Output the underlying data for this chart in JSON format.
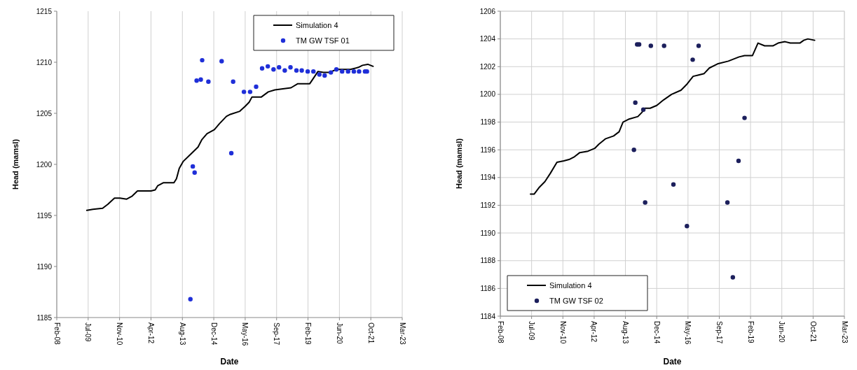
{
  "chart_data": [
    {
      "type": "line",
      "xlabel": "Date",
      "ylabel": "Head (mamsl)",
      "ylim": [
        1185,
        1215
      ],
      "yticks": [
        1185,
        1190,
        1195,
        1200,
        1205,
        1210,
        1215
      ],
      "xlim": [
        "2008-02-22",
        "2023-03-15"
      ],
      "xticks": [
        {
          "value": "2008-02-22",
          "label": "Feb-08"
        },
        {
          "value": "2009-07-06",
          "label": "Jul-09"
        },
        {
          "value": "2010-11-18",
          "label": "Nov-10"
        },
        {
          "value": "2012-04-01",
          "label": "Apr-12"
        },
        {
          "value": "2013-08-14",
          "label": "Aug-13"
        },
        {
          "value": "2014-12-27",
          "label": "Dec-14"
        },
        {
          "value": "2016-05-10",
          "label": "May-16"
        },
        {
          "value": "2017-09-22",
          "label": "Sep-17"
        },
        {
          "value": "2019-02-04",
          "label": "Feb-19"
        },
        {
          "value": "2020-06-18",
          "label": "Jun-20"
        },
        {
          "value": "2021-10-31",
          "label": "Oct-21"
        },
        {
          "value": "2023-03-15",
          "label": "Mar-23"
        }
      ],
      "grid": "x",
      "legend": "top right",
      "series": [
        {
          "name": "Simulation 4",
          "color": "#000000",
          "line_style": "solid",
          "x": [
            "2009-06-14",
            "2009-09-20",
            "2010-02-21",
            "2010-05-16",
            "2010-08-29",
            "2010-11-25",
            "2011-03-11",
            "2011-06-07",
            "2011-08-30",
            "2012-04-02",
            "2012-06-07",
            "2012-07-16",
            "2012-10-13",
            "2013-04-02",
            "2013-05-12",
            "2013-06-25",
            "2013-08-29",
            "2013-11-22",
            "2014-04-20",
            "2014-06-18",
            "2014-09-10",
            "2015-01-05",
            "2015-03-29",
            "2015-07-16",
            "2015-09-17",
            "2016-02-14",
            "2016-05-12",
            "2016-07-13",
            "2016-08-26",
            "2017-01-23",
            "2017-05-12",
            "2017-08-26",
            "2018-01-01",
            "2018-05-09",
            "2018-08-26",
            "2019-03-04",
            "2019-05-09",
            "2019-07-13",
            "2019-10-05",
            "2020-01-01",
            "2020-05-09",
            "2020-12-10",
            "2021-04-16",
            "2021-06-21",
            "2021-09-13",
            "2021-12-06"
          ],
          "values": [
            1195.5,
            1195.6,
            1195.7,
            1196.1,
            1196.7,
            1196.7,
            1196.6,
            1196.9,
            1197.4,
            1197.4,
            1197.5,
            1197.9,
            1198.2,
            1198.2,
            1198.6,
            1199.6,
            1200.3,
            1200.8,
            1201.7,
            1202.4,
            1203.0,
            1203.4,
            1204.0,
            1204.7,
            1204.9,
            1205.2,
            1205.7,
            1206.1,
            1206.6,
            1206.6,
            1207.1,
            1207.3,
            1207.4,
            1207.5,
            1207.9,
            1207.9,
            1208.5,
            1209.1,
            1209.0,
            1209.0,
            1209.3,
            1209.3,
            1209.5,
            1209.7,
            1209.8,
            1209.6
          ]
        },
        {
          "name": "TM GW TSF 01",
          "type": "scatter",
          "color": "#1f2fd8",
          "marker": "circle",
          "x": [
            "2013-12-20",
            "2014-01-27",
            "2014-02-25",
            "2014-03-29",
            "2014-06-03",
            "2014-06-25",
            "2014-10-02",
            "2015-05-01",
            "2015-10-02",
            "2015-10-31",
            "2016-04-20",
            "2016-07-27",
            "2016-10-31",
            "2017-02-03",
            "2017-05-05",
            "2017-08-04",
            "2017-10-31",
            "2018-01-30",
            "2018-05-01",
            "2018-08-04",
            "2018-10-27",
            "2019-01-30",
            "2019-05-01",
            "2019-08-04",
            "2019-10-27",
            "2020-02-03",
            "2020-05-01",
            "2020-07-31",
            "2020-11-03",
            "2021-02-03",
            "2021-04-27",
            "2021-07-31",
            "2021-08-30"
          ],
          "values": [
            1186.8,
            1199.8,
            1199.2,
            1208.2,
            1208.3,
            1210.2,
            1208.1,
            1210.1,
            1201.1,
            1208.1,
            1207.1,
            1207.1,
            1207.6,
            1209.4,
            1209.6,
            1209.3,
            1209.5,
            1209.2,
            1209.5,
            1209.2,
            1209.2,
            1209.1,
            1209.1,
            1208.8,
            1208.7,
            1209.0,
            1209.3,
            1209.1,
            1209.1,
            1209.1,
            1209.1,
            1209.1,
            1209.1
          ]
        }
      ]
    },
    {
      "type": "line",
      "xlabel": "Date",
      "ylabel": "Head (mamsl)",
      "ylim": [
        1184,
        1206
      ],
      "yticks": [
        1184,
        1186,
        1188,
        1190,
        1192,
        1194,
        1196,
        1198,
        1200,
        1202,
        1204,
        1206
      ],
      "xlim": [
        "2008-02-22",
        "2023-03-15"
      ],
      "xticks": [
        {
          "value": "2008-02-22",
          "label": "Feb-08"
        },
        {
          "value": "2009-07-06",
          "label": "Jul-09"
        },
        {
          "value": "2010-11-18",
          "label": "Nov-10"
        },
        {
          "value": "2012-04-01",
          "label": "Apr-12"
        },
        {
          "value": "2013-08-14",
          "label": "Aug-13"
        },
        {
          "value": "2014-12-27",
          "label": "Dec-14"
        },
        {
          "value": "2016-05-10",
          "label": "May-16"
        },
        {
          "value": "2017-09-22",
          "label": "Sep-17"
        },
        {
          "value": "2019-02-04",
          "label": "Feb-19"
        },
        {
          "value": "2020-06-18",
          "label": "Jun-20"
        },
        {
          "value": "2021-10-31",
          "label": "Oct-21"
        },
        {
          "value": "2023-03-15",
          "label": "Mar-23"
        }
      ],
      "grid": true,
      "legend": "bottom left",
      "series": [
        {
          "name": "Simulation 4",
          "color": "#000000",
          "line_style": "solid",
          "x": [
            "2009-06-18",
            "2009-08-15",
            "2009-11-07",
            "2010-02-03",
            "2010-05-01",
            "2010-08-15",
            "2010-12-03",
            "2011-02-25",
            "2011-05-23",
            "2011-08-15",
            "2011-12-24",
            "2012-04-09",
            "2012-06-14",
            "2012-10-02",
            "2013-02-06",
            "2013-05-05",
            "2013-07-06",
            "2013-10-02",
            "2014-03-01",
            "2014-05-05",
            "2014-06-18",
            "2014-09-13",
            "2014-12-28",
            "2015-04-16",
            "2015-08-22",
            "2016-01-19",
            "2016-04-16",
            "2016-07-31",
            "2016-10-27",
            "2017-01-23",
            "2017-04-16",
            "2017-08-26",
            "2018-02-14",
            "2018-08-04",
            "2018-10-31",
            "2019-03-07",
            "2019-06-03",
            "2019-09-17",
            "2020-01-27",
            "2020-04-20",
            "2020-08-08",
            "2020-10-31",
            "2021-04-02",
            "2021-06-03",
            "2021-08-08",
            "2021-11-25"
          ],
          "values": [
            1192.8,
            1192.8,
            1193.3,
            1193.7,
            1194.3,
            1195.1,
            1195.2,
            1195.3,
            1195.5,
            1195.8,
            1195.9,
            1196.1,
            1196.4,
            1196.8,
            1197.0,
            1197.3,
            1198.0,
            1198.2,
            1198.4,
            1198.7,
            1199.0,
            1199.0,
            1199.2,
            1199.6,
            1200.0,
            1200.3,
            1200.7,
            1201.3,
            1201.4,
            1201.5,
            1201.9,
            1202.2,
            1202.4,
            1202.7,
            1202.8,
            1202.8,
            1203.7,
            1203.5,
            1203.5,
            1203.7,
            1203.8,
            1203.7,
            1203.7,
            1203.9,
            1204.0,
            1203.9
          ]
        },
        {
          "name": "TM GW TSF 02",
          "type": "scatter",
          "color": "#1c1f5c",
          "marker": "circle",
          "x": [
            "2013-12-28",
            "2014-01-19",
            "2014-02-17",
            "2014-03-21",
            "2014-05-27",
            "2014-06-25",
            "2014-09-24",
            "2015-04-24",
            "2015-09-20",
            "2016-04-23",
            "2016-07-24",
            "2016-10-27",
            "2018-01-30",
            "2018-04-27",
            "2018-07-27",
            "2018-10-31"
          ],
          "values": [
            1196.0,
            1199.4,
            1203.6,
            1203.6,
            1198.9,
            1192.2,
            1203.5,
            1203.5,
            1193.5,
            1190.5,
            1202.5,
            1203.5,
            1192.2,
            1186.8,
            1195.2,
            1198.3
          ]
        }
      ]
    }
  ]
}
